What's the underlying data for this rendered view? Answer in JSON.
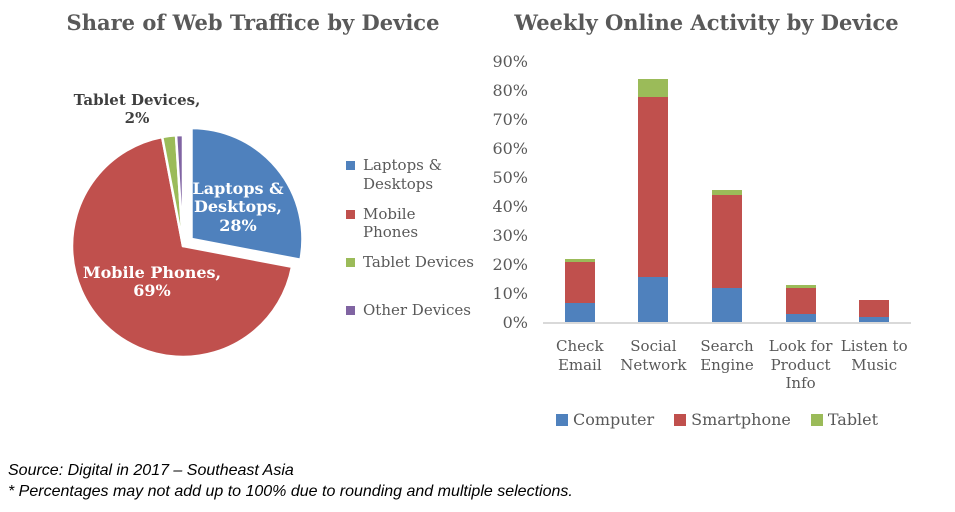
{
  "chart_data": [
    {
      "type": "pie",
      "title": "Share of Web Traffice by Device",
      "legend_position": "right",
      "legend": [
        "Laptops & Desktops",
        "Mobile Phones",
        "Tablet Devices",
        "Other Devices"
      ],
      "slices": [
        {
          "label": "Laptops & Desktops",
          "value": 28,
          "color": "#4F81BD",
          "exploded": true,
          "data_label": {
            "lines": [
              "Laptops &",
              "Desktops,",
              "28%"
            ],
            "color": "#FFFFFF",
            "placement": "inside"
          }
        },
        {
          "label": "Mobile Phones",
          "value": 69,
          "color": "#C0504D",
          "exploded": false,
          "data_label": {
            "lines": [
              "Mobile Phones,",
              "69%"
            ],
            "color": "#FFFFFF",
            "placement": "inside"
          }
        },
        {
          "label": "Tablet Devices",
          "value": 2,
          "color": "#9BBB59",
          "exploded": false,
          "data_label": {
            "lines": [
              "Tablet Devices,",
              "2%"
            ],
            "color": "#3F3F3F",
            "placement": "outside"
          }
        },
        {
          "label": "Other Devices",
          "value": 1,
          "color": "#8064A2",
          "exploded": false,
          "data_label": null
        }
      ]
    },
    {
      "type": "bar",
      "stacked": true,
      "title": "Weekly Online Activity by Device",
      "categories": [
        "Check Email",
        "Social Network",
        "Search Engine",
        "Look for Product Info",
        "Listen to Music"
      ],
      "series": [
        {
          "name": "Computer",
          "color": "#4F81BD",
          "values": [
            7,
            16,
            12,
            3,
            2
          ]
        },
        {
          "name": "Smartphone",
          "color": "#C0504D",
          "values": [
            14,
            62,
            32,
            9,
            6
          ]
        },
        {
          "name": "Tablet",
          "color": "#9BBB59",
          "values": [
            1,
            6,
            2,
            1,
            0
          ]
        }
      ],
      "xlabel": "",
      "ylabel": "",
      "ylim": [
        0,
        90
      ],
      "ytick_step": 10,
      "ytick_labels": [
        "0%",
        "10%",
        "20%",
        "30%",
        "40%",
        "50%",
        "60%",
        "70%",
        "80%",
        "90%"
      ],
      "grid": false,
      "legend_position": "bottom"
    }
  ],
  "footer": {
    "source": "Source: Digital in 2017 – Southeast Asia",
    "note": "* Percentages may not add up to 100% due to rounding and multiple selections."
  },
  "colors": {
    "blue": "#4F81BD",
    "red": "#C0504D",
    "green": "#9BBB59",
    "purple": "#8064A2",
    "text_gray": "#595959",
    "axis_gray": "#D9D9D9"
  }
}
